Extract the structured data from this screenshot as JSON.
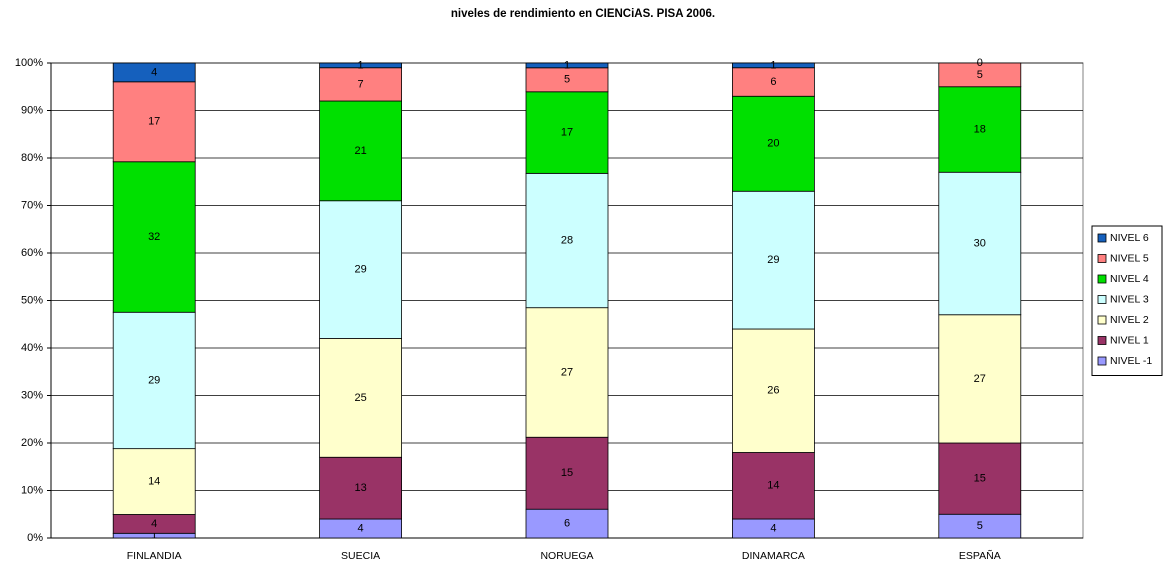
{
  "chart_data": {
    "type": "bar",
    "stacking": "percent",
    "title": "niveles de rendimiento en CIENCiAS. PISA 2006.",
    "categories": [
      "FINLANDIA",
      "SUECIA",
      "NORUEGA",
      "DINAMARCA",
      "ESPAÑA"
    ],
    "series": [
      {
        "name": "NIVEL -1",
        "color": "#9999ff",
        "values": [
          1,
          4,
          6,
          4,
          5
        ]
      },
      {
        "name": "NIVEL 1",
        "color": "#993366",
        "values": [
          4,
          13,
          15,
          14,
          15
        ]
      },
      {
        "name": "NIVEL 2",
        "color": "#ffffcc",
        "values": [
          14,
          25,
          27,
          26,
          27
        ]
      },
      {
        "name": "NIVEL 3",
        "color": "#ccffff",
        "values": [
          29,
          29,
          28,
          29,
          30
        ]
      },
      {
        "name": "NIVEL 4",
        "color": "#00e000",
        "values": [
          32,
          21,
          17,
          20,
          18
        ]
      },
      {
        "name": "NIVEL 5",
        "color": "#ff8080",
        "values": [
          17,
          7,
          5,
          6,
          5
        ]
      },
      {
        "name": "NIVEL 6",
        "color": "#1560bd",
        "values": [
          4,
          1,
          1,
          1,
          0
        ]
      }
    ],
    "ylim": [
      0,
      100
    ],
    "yticks": [
      {
        "value": 0,
        "label": "0%"
      },
      {
        "value": 10,
        "label": "10%"
      },
      {
        "value": 20,
        "label": "20%"
      },
      {
        "value": 30,
        "label": "30%"
      },
      {
        "value": 40,
        "label": "40%"
      },
      {
        "value": 50,
        "label": "50%"
      },
      {
        "value": 60,
        "label": "60%"
      },
      {
        "value": 70,
        "label": "70%"
      },
      {
        "value": 80,
        "label": "80%"
      },
      {
        "value": 90,
        "label": "90%"
      },
      {
        "value": 100,
        "label": "100%"
      }
    ],
    "grid": true,
    "legend": "right"
  }
}
